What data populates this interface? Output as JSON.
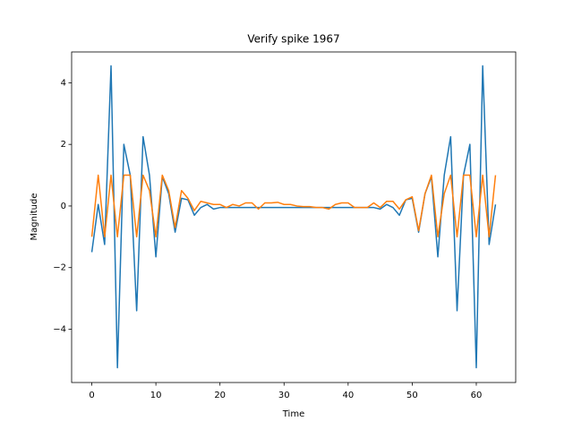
{
  "chart_data": {
    "type": "line",
    "title": "Verify spike 1967",
    "xlabel": "Time",
    "ylabel": "Magnitude",
    "x": [
      0,
      1,
      2,
      3,
      4,
      5,
      6,
      7,
      8,
      9,
      10,
      11,
      12,
      13,
      14,
      15,
      16,
      17,
      18,
      19,
      20,
      21,
      22,
      23,
      24,
      25,
      26,
      27,
      28,
      29,
      30,
      31,
      32,
      33,
      34,
      35,
      36,
      37,
      38,
      39,
      40,
      41,
      42,
      43,
      44,
      45,
      46,
      47,
      48,
      49,
      50,
      51,
      52,
      53,
      54,
      55,
      56,
      57,
      58,
      59,
      60,
      61,
      62,
      63
    ],
    "series": [
      {
        "color": "#1f77b4",
        "values": [
          -1.5,
          0.05,
          -1.25,
          4.55,
          -5.25,
          2.0,
          1.0,
          -3.4,
          2.25,
          1.0,
          -1.65,
          0.95,
          0.4,
          -0.85,
          0.25,
          0.2,
          -0.3,
          -0.05,
          0.05,
          -0.1,
          -0.05,
          -0.05,
          -0.05,
          -0.05,
          -0.05,
          -0.05,
          -0.05,
          -0.05,
          -0.05,
          -0.05,
          -0.05,
          -0.05,
          -0.05,
          -0.05,
          -0.05,
          -0.05,
          -0.05,
          -0.05,
          -0.05,
          -0.05,
          -0.05,
          -0.05,
          -0.05,
          -0.05,
          -0.05,
          -0.1,
          0.05,
          -0.05,
          -0.3,
          0.2,
          0.25,
          -0.85,
          0.4,
          0.95,
          -1.65,
          1.0,
          2.25,
          -3.4,
          1.0,
          2.0,
          -5.25,
          4.55,
          -1.25,
          0.05
        ]
      },
      {
        "color": "#ff7f0e",
        "values": [
          -1,
          1,
          -1,
          1,
          -1,
          1,
          1,
          -1,
          1,
          0.5,
          -1,
          1,
          0.5,
          -0.7,
          0.5,
          0.25,
          -0.15,
          0.15,
          0.1,
          0.05,
          0.05,
          -0.05,
          0.05,
          0.0,
          0.1,
          0.1,
          -0.1,
          0.1,
          0.1,
          0.12,
          0.05,
          0.05,
          0.0,
          -0.02,
          -0.02,
          -0.05,
          -0.05,
          -0.1,
          0.05,
          0.1,
          0.1,
          -0.05,
          -0.05,
          -0.05,
          0.1,
          -0.05,
          0.15,
          0.15,
          -0.1,
          0.2,
          0.3,
          -0.8,
          0.4,
          1,
          -1,
          0.4,
          1,
          -1,
          1,
          1,
          -1,
          1,
          -1,
          1
        ]
      }
    ],
    "xlim": [
      -3.15,
      66.15
    ],
    "xticks": [
      0,
      10,
      20,
      30,
      40,
      50,
      60
    ],
    "ylim": [
      -5.73,
      5.0
    ],
    "yticks": [
      {
        "value": -4,
        "label": "−4"
      },
      {
        "value": -2,
        "label": "−2"
      },
      0,
      2,
      4
    ]
  }
}
